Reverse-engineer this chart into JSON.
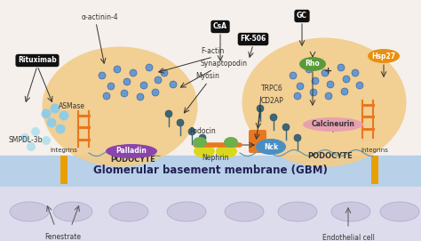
{
  "gbm_label": "Glomerular basement membrane (GBM)",
  "bg_color": "#f5f0eb",
  "podocyte_color": "#f2cc88",
  "gbm_color": "#b8cfe0",
  "endothelial_color": "#dcdcec",
  "labels": {
    "alpha_actinin": "α-actinin-4",
    "rituximab": "Rituximab",
    "asmase": "ASMase",
    "smpdl3b": "SMPDL-3b",
    "palladin": "Palladin",
    "podocyte1": "PODOCYTE",
    "podocyte2": "PODOCYTE",
    "f_actin": "F-actin",
    "synaptopodin": "Synaptopodin",
    "myosin": "Myosin",
    "trpc6": "TRPC6",
    "cd2ap": "CD2AP",
    "podocin": "Podocin",
    "nephrin": "Nephrin",
    "nck": "Nck",
    "csa": "CsA",
    "fk506": "FK-506",
    "rho": "Rho",
    "calcineurin": "Calcineurin",
    "hsp27": "Hsp27",
    "gc": "GC",
    "integrins1": "Integrins",
    "integrins2": "Integrins",
    "fenestrate": "Fenestrate",
    "endothelial_cell": "Endothelial cell"
  },
  "colors": {
    "palladin_bg": "#8B44AD",
    "nck_bg": "#4a8fc4",
    "rho_bg": "#5a9a3a",
    "calcineurin_bg": "#e8a0b0",
    "hsp27_bg": "#e89010",
    "integrin_bar": "#e8a000",
    "dot_blue": "#5588bb",
    "dot_teal": "#3a6878",
    "arrow_color": "#333333",
    "nephrin_yellow": "#d4d418",
    "podocin_green": "#6ab04c",
    "trpc6_orange": "#e87820",
    "black_bg": "#111111"
  }
}
